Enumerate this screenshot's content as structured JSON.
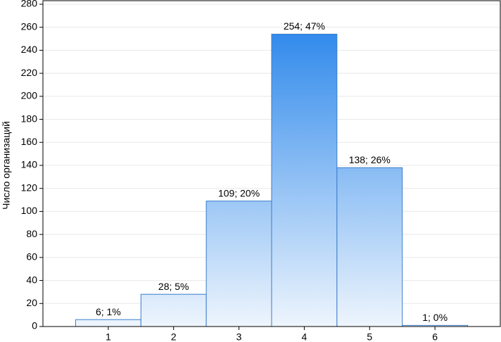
{
  "chart_data": {
    "type": "bar",
    "y_label": "Число организаций",
    "categories": [
      "1",
      "2",
      "3",
      "4",
      "5",
      "6"
    ],
    "values": [
      6,
      28,
      109,
      254,
      138,
      1
    ],
    "value_labels": [
      "6; 1%",
      "28; 5%",
      "109; 20%",
      "254; 47%",
      "138; 26%",
      "1; 0%"
    ],
    "color": "#1f80ea",
    "ylim": [
      0,
      280
    ],
    "yticks": [
      0,
      20,
      40,
      60,
      80,
      100,
      120,
      140,
      160,
      180,
      200,
      220,
      240,
      260,
      280
    ],
    "grid": true
  }
}
